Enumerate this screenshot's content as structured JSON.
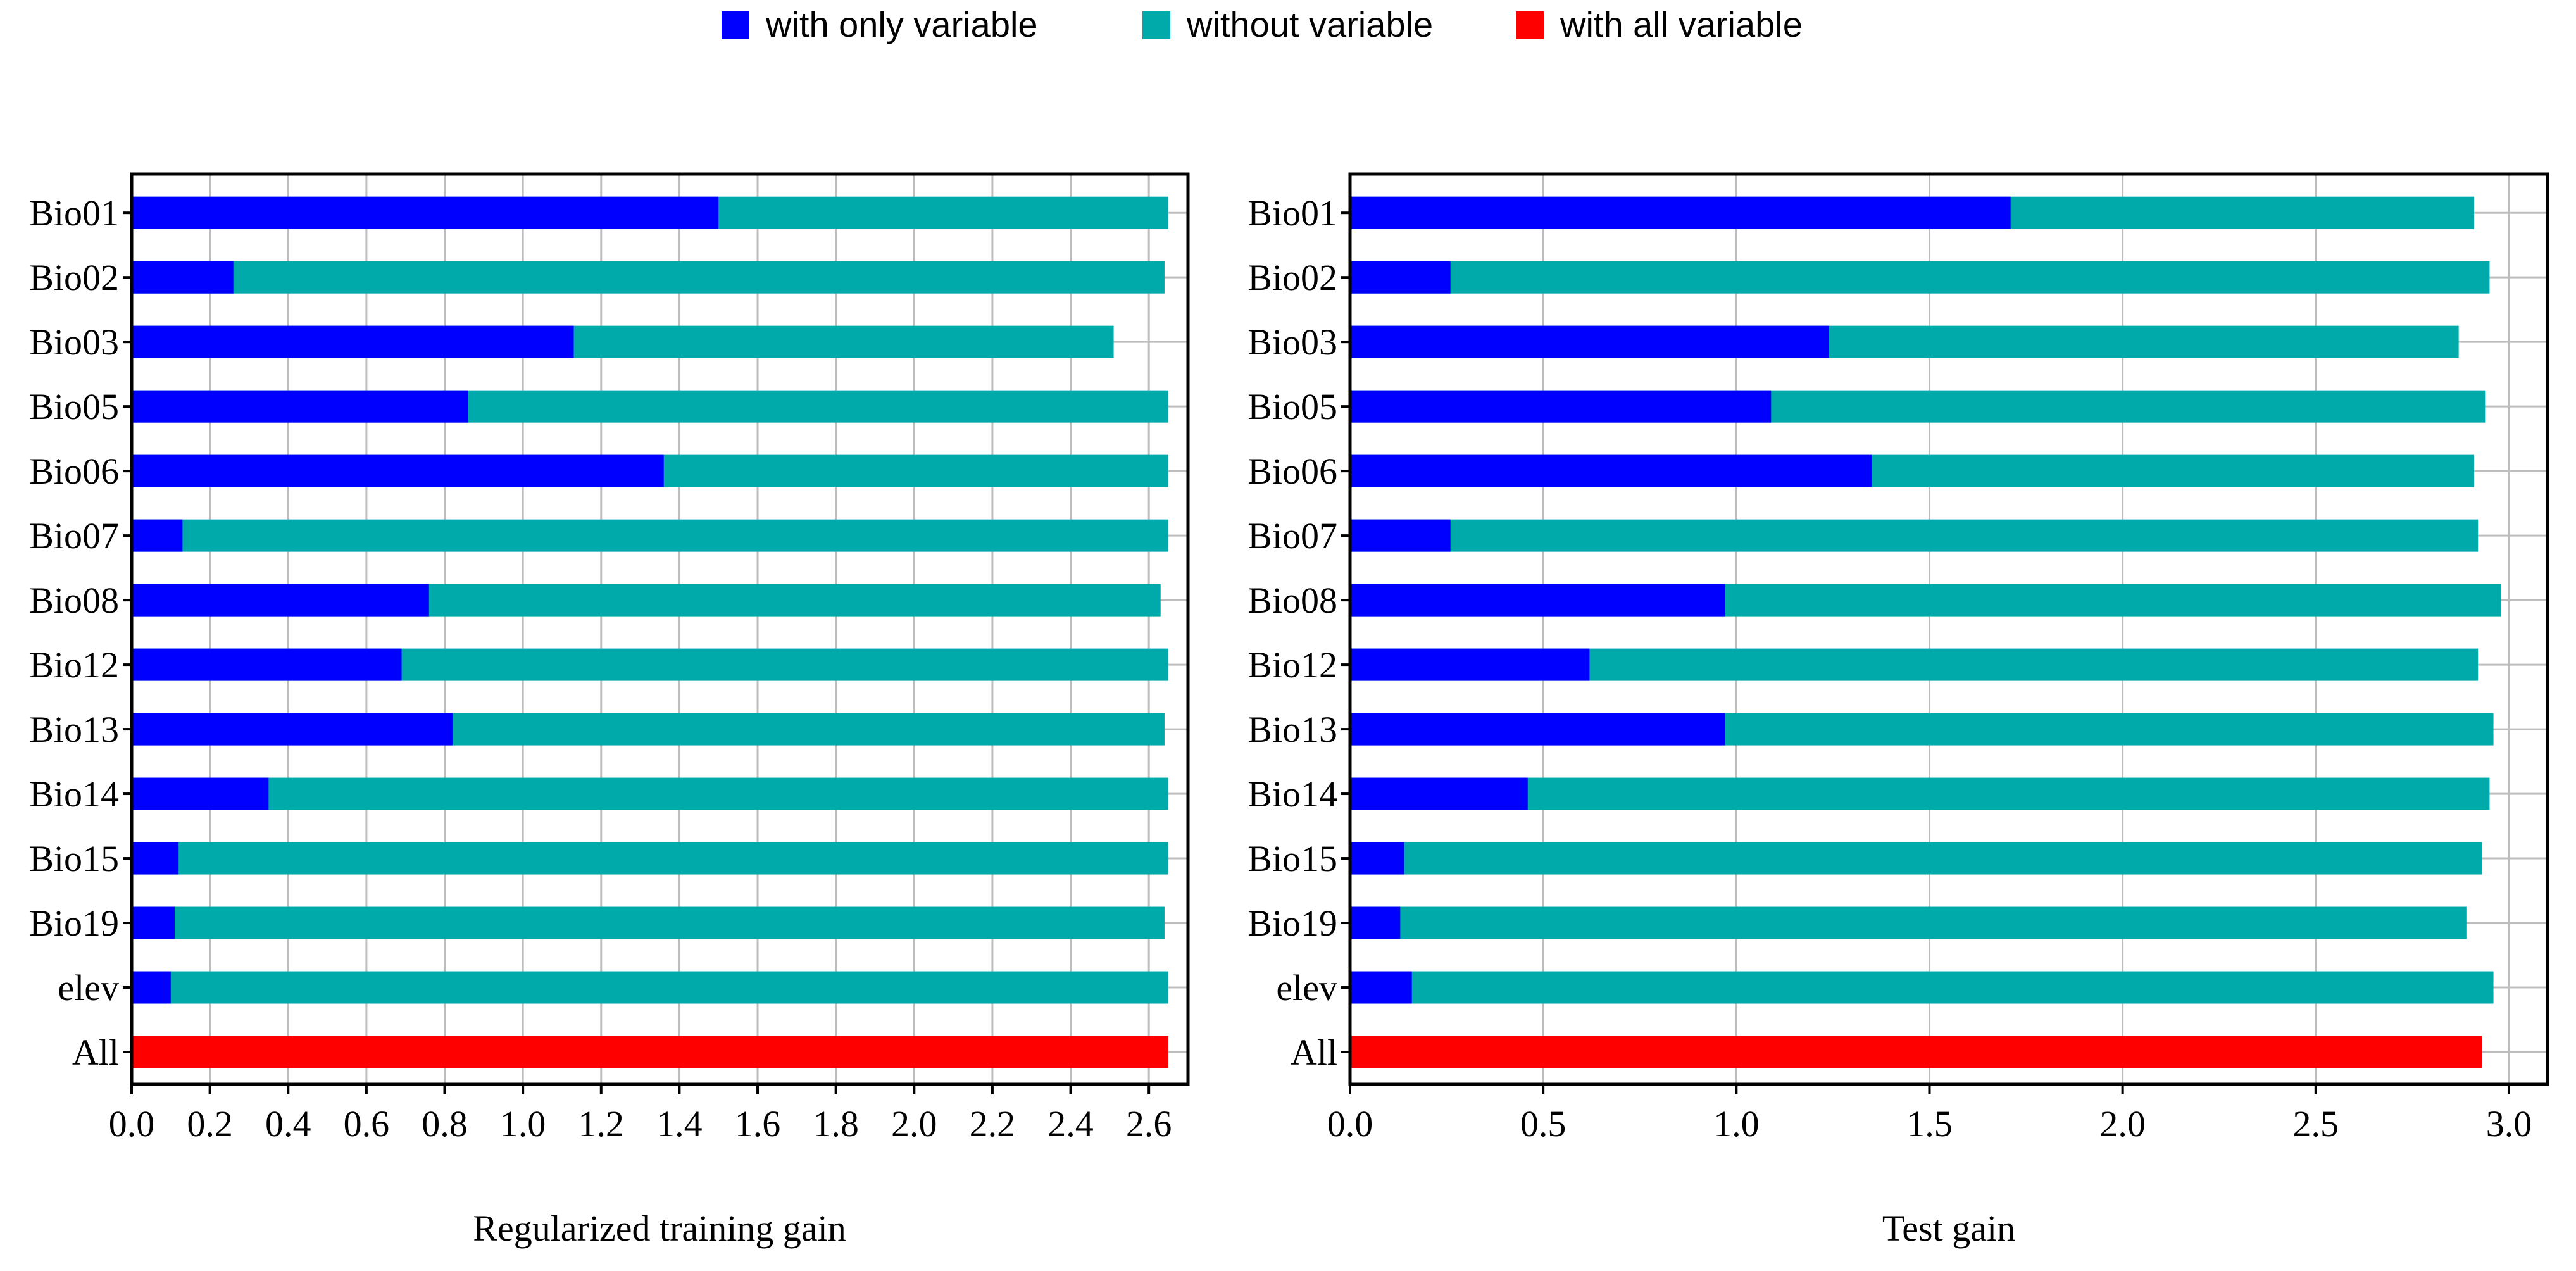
{
  "legend": [
    {
      "label": "with only variable",
      "color": "#0000ff"
    },
    {
      "label": "without variable",
      "color": "#00aaaa"
    },
    {
      "label": "with all variable",
      "color": "#ff0000"
    }
  ],
  "chart_data": [
    {
      "type": "bar",
      "orientation": "horizontal",
      "title": "",
      "xlabel": "Regularized training gain",
      "ylabel": "",
      "xlim": [
        0.0,
        2.7
      ],
      "xticks": [
        "0.0",
        "0.2",
        "0.4",
        "0.6",
        "0.8",
        "1.0",
        "1.2",
        "1.4",
        "1.6",
        "1.8",
        "2.0",
        "2.2",
        "2.4",
        "2.6"
      ],
      "categories": [
        "Bio01",
        "Bio02",
        "Bio03",
        "Bio05",
        "Bio06",
        "Bio07",
        "Bio08",
        "Bio12",
        "Bio13",
        "Bio14",
        "Bio15",
        "Bio19",
        "elev",
        "All"
      ],
      "series": [
        {
          "name": "without variable",
          "color": "#00aaaa",
          "values": [
            2.65,
            2.64,
            2.51,
            2.65,
            2.65,
            2.65,
            2.63,
            2.65,
            2.64,
            2.65,
            2.65,
            2.64,
            2.65,
            null
          ]
        },
        {
          "name": "with only variable",
          "color": "#0000ff",
          "values": [
            1.5,
            0.26,
            1.13,
            0.86,
            1.36,
            0.13,
            0.76,
            0.69,
            0.82,
            0.35,
            0.12,
            0.11,
            0.1,
            null
          ]
        },
        {
          "name": "with all variable",
          "color": "#ff0000",
          "values": [
            null,
            null,
            null,
            null,
            null,
            null,
            null,
            null,
            null,
            null,
            null,
            null,
            null,
            2.65
          ]
        }
      ],
      "grid": true
    },
    {
      "type": "bar",
      "orientation": "horizontal",
      "title": "",
      "xlabel": "Test gain",
      "ylabel": "",
      "xlim": [
        0.0,
        3.1
      ],
      "xticks": [
        "0.0",
        "0.5",
        "1.0",
        "1.5",
        "2.0",
        "2.5",
        "3.0"
      ],
      "categories": [
        "Bio01",
        "Bio02",
        "Bio03",
        "Bio05",
        "Bio06",
        "Bio07",
        "Bio08",
        "Bio12",
        "Bio13",
        "Bio14",
        "Bio15",
        "Bio19",
        "elev",
        "All"
      ],
      "series": [
        {
          "name": "without variable",
          "color": "#00aaaa",
          "values": [
            2.91,
            2.95,
            2.87,
            2.94,
            2.91,
            2.92,
            2.98,
            2.92,
            2.96,
            2.95,
            2.93,
            2.89,
            2.96,
            null
          ]
        },
        {
          "name": "with only variable",
          "color": "#0000ff",
          "values": [
            1.71,
            0.26,
            1.24,
            1.09,
            1.35,
            0.26,
            0.97,
            0.62,
            0.97,
            0.46,
            0.14,
            0.13,
            0.16,
            null
          ]
        },
        {
          "name": "with all variable",
          "color": "#ff0000",
          "values": [
            null,
            null,
            null,
            null,
            null,
            null,
            null,
            null,
            null,
            null,
            null,
            null,
            null,
            2.93
          ]
        }
      ],
      "grid": true
    }
  ]
}
